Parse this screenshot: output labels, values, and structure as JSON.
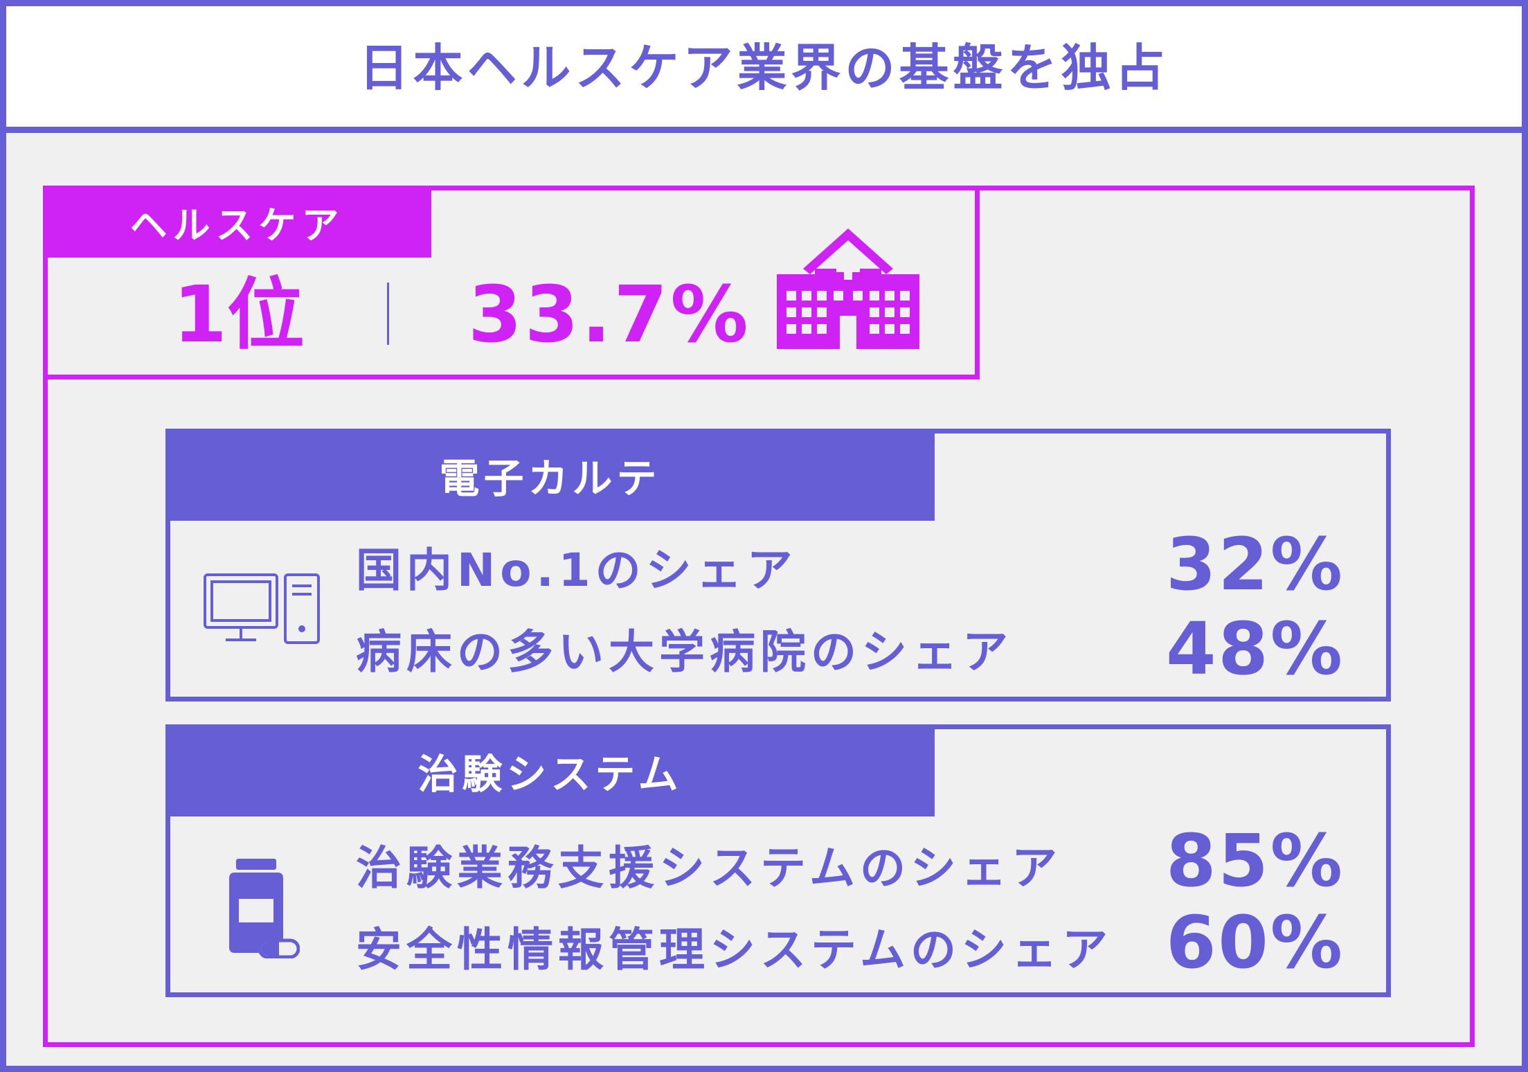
{
  "title": "日本ヘルスケア業界の基盤を独占",
  "healthcare": {
    "tab_label": "ヘルスケア",
    "rank": "1位",
    "share": "33.7%",
    "icon": "hospital-icon"
  },
  "sections": [
    {
      "tab_label": "電子カルテ",
      "icon": "desktop-computer-icon",
      "rows": [
        {
          "label": "国内No.1のシェア",
          "value": "32%"
        },
        {
          "label": "病床の多い大学病院のシェア",
          "value": "48%"
        }
      ]
    },
    {
      "tab_label": "治験システム",
      "icon": "medicine-bottle-icon",
      "rows": [
        {
          "label": "治験業務支援システムのシェア",
          "value": "85%"
        },
        {
          "label": "安全性情報管理システムのシェア",
          "value": "60%"
        }
      ]
    }
  ],
  "colors": {
    "primary": "#665ed4",
    "accent": "#cf22f5",
    "panel_bg": "#f1f0f0"
  }
}
